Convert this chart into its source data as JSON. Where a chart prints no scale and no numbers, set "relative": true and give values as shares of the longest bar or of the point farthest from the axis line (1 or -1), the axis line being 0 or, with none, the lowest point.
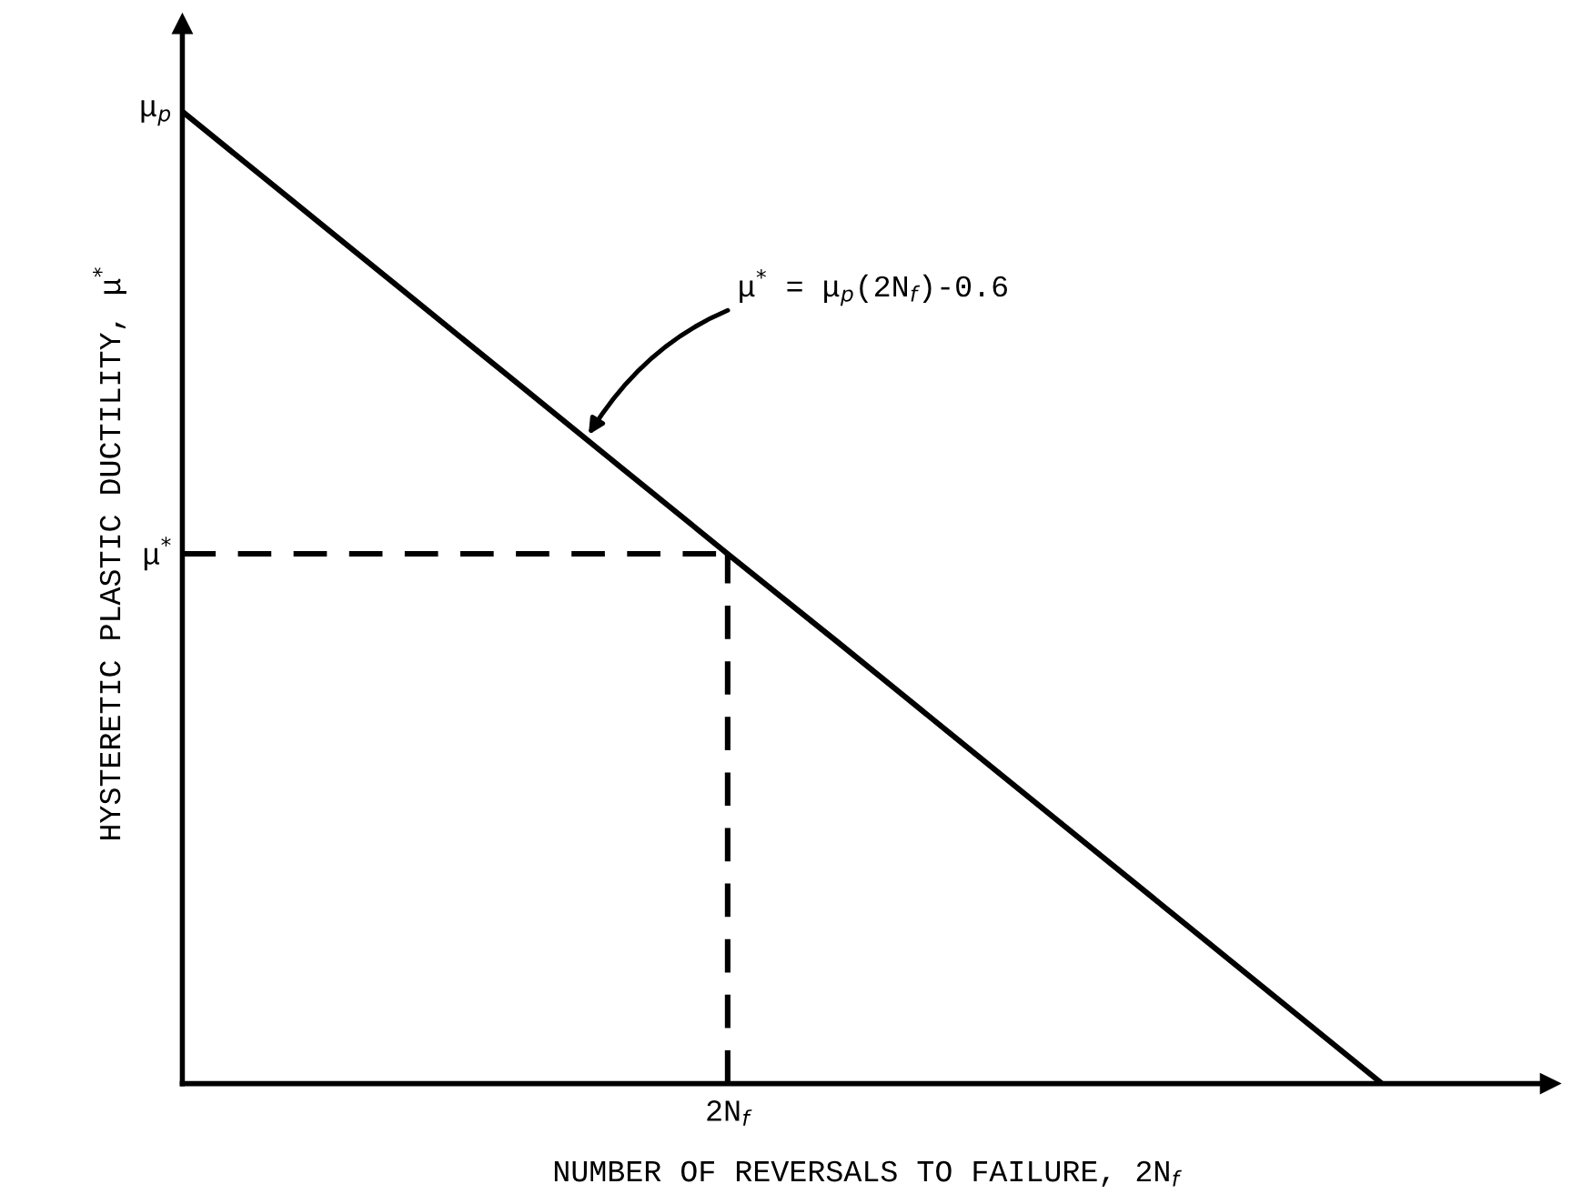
{
  "chart_data": {
    "type": "line",
    "relative": true,
    "xlabel": "NUMBER OF REVERSALS TO FAILURE, 2N$_{f}$",
    "ylabel": "HYSTERETIC PLASTIC DUCTILITY, μ$^{*}$",
    "categories": [
      null,
      null,
      null,
      null,
      null,
      null,
      null,
      null,
      null,
      null,
      null,
      null
    ],
    "series": [
      {
        "color": "#000000",
        "values": [
          1,
          0.909,
          0.818,
          0.727,
          0.636,
          0.545,
          0.455,
          0.364,
          0.273,
          0.182,
          0.091,
          0
        ]
      }
    ],
    "ref_lines": [
      {
        "axis": "y",
        "value": 0.545,
        "label": "μ$^{*}$",
        "color": "#000000",
        "line_style": "dashed"
      }
    ],
    "annotations": [
      "μ$_{p}$",
      "2N$_{f}$",
      "μ$^{*}$ = μ$_{p}$(2N$_{f}$)-0.6"
    ],
    "legend": false,
    "marker": "none",
    "line_style": "solid"
  }
}
